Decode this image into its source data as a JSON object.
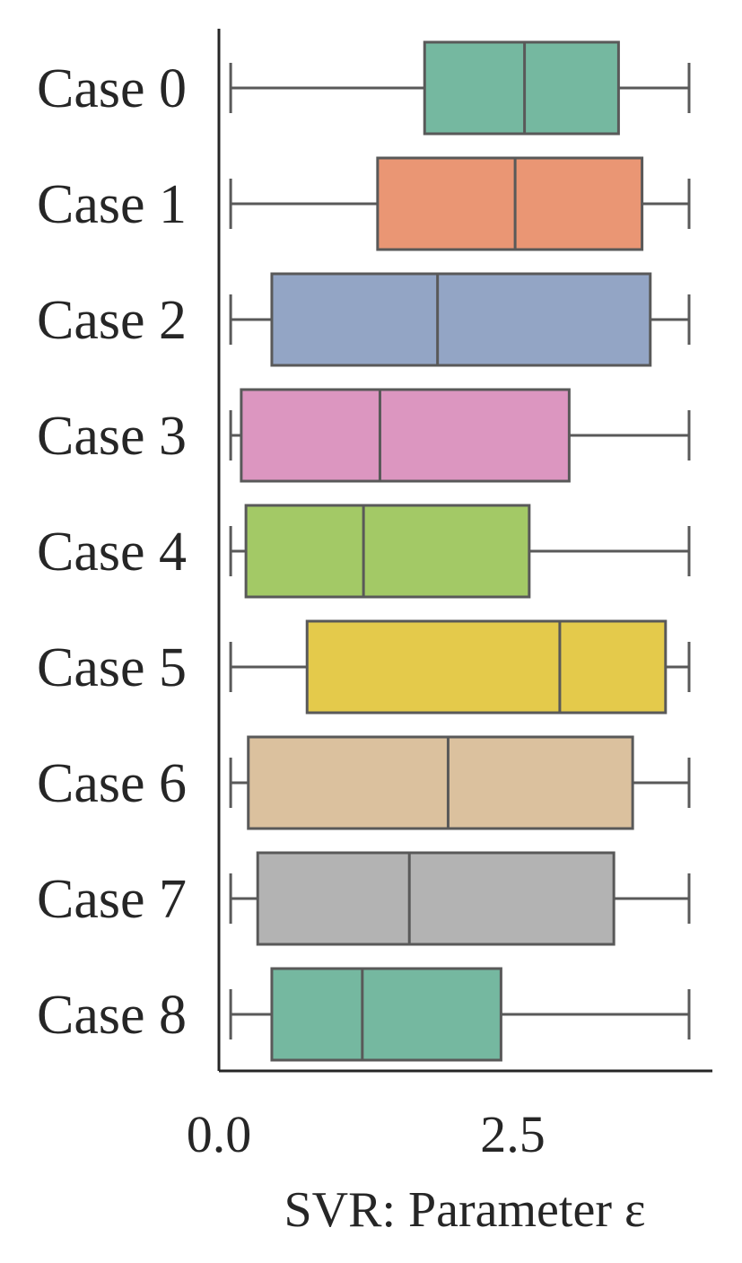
{
  "chart_data": {
    "type": "boxplot",
    "orientation": "horizontal",
    "title": "",
    "xlabel": "SVR: Parameter ε",
    "ylabel": "",
    "xlim": [
      0,
      4.2
    ],
    "xticks": [
      0.0,
      2.5
    ],
    "xtick_labels": [
      "0.0",
      "2.5"
    ],
    "grid": false,
    "legend": "none",
    "categories": [
      "Case 0",
      "Case 1",
      "Case 2",
      "Case 3",
      "Case 4",
      "Case 5",
      "Case 6",
      "Case 7",
      "Case 8"
    ],
    "series": [
      {
        "category": "Case 0",
        "whisker_low": 0.1,
        "q1": 1.75,
        "median": 2.6,
        "q3": 3.4,
        "whisker_high": 4.0,
        "color": "#75b8a0"
      },
      {
        "category": "Case 1",
        "whisker_low": 0.1,
        "q1": 1.35,
        "median": 2.52,
        "q3": 3.6,
        "whisker_high": 4.0,
        "color": "#ea9674"
      },
      {
        "category": "Case 2",
        "whisker_low": 0.1,
        "q1": 0.45,
        "median": 1.86,
        "q3": 3.67,
        "whisker_high": 4.0,
        "color": "#93a5c5"
      },
      {
        "category": "Case 3",
        "whisker_low": 0.1,
        "q1": 0.19,
        "median": 1.37,
        "q3": 2.98,
        "whisker_high": 4.0,
        "color": "#dc96c0"
      },
      {
        "category": "Case 4",
        "whisker_low": 0.1,
        "q1": 0.23,
        "median": 1.23,
        "q3": 2.64,
        "whisker_high": 4.0,
        "color": "#a3c966"
      },
      {
        "category": "Case 5",
        "whisker_low": 0.1,
        "q1": 0.75,
        "median": 2.9,
        "q3": 3.8,
        "whisker_high": 4.0,
        "color": "#e4ca4b"
      },
      {
        "category": "Case 6",
        "whisker_low": 0.1,
        "q1": 0.25,
        "median": 1.95,
        "q3": 3.52,
        "whisker_high": 4.0,
        "color": "#dbc19e"
      },
      {
        "category": "Case 7",
        "whisker_low": 0.1,
        "q1": 0.33,
        "median": 1.62,
        "q3": 3.36,
        "whisker_high": 4.0,
        "color": "#b3b3b3"
      },
      {
        "category": "Case 8",
        "whisker_low": 0.1,
        "q1": 0.45,
        "median": 1.22,
        "q3": 2.4,
        "whisker_high": 4.0,
        "color": "#75b8a0"
      }
    ]
  }
}
